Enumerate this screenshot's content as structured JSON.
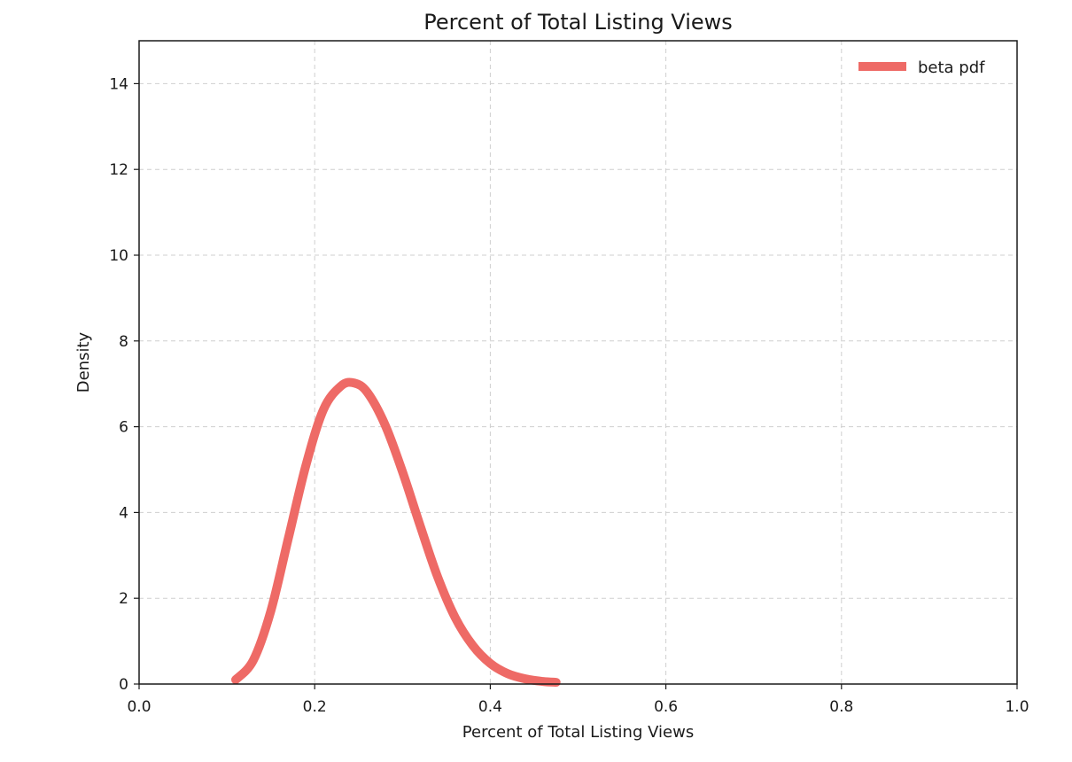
{
  "chart_data": {
    "type": "line",
    "title": "Percent of Total Listing Views",
    "xlabel": "Percent of Total Listing Views",
    "ylabel": "Density",
    "xlim": [
      0.0,
      1.0
    ],
    "ylim": [
      0,
      15
    ],
    "xticks": [
      0.0,
      0.2,
      0.4,
      0.6,
      0.8,
      1.0
    ],
    "xtick_labels": [
      "0.0",
      "0.2",
      "0.4",
      "0.6",
      "0.8",
      "1.0"
    ],
    "yticks": [
      0,
      2,
      4,
      6,
      8,
      10,
      12,
      14
    ],
    "ytick_labels": [
      "0",
      "2",
      "4",
      "6",
      "8",
      "10",
      "12",
      "14"
    ],
    "grid": true,
    "legend_position": "top-right",
    "series": [
      {
        "name": "beta pdf",
        "color": "#ee6a66",
        "x": [
          0.11,
          0.13,
          0.15,
          0.17,
          0.19,
          0.21,
          0.23,
          0.245,
          0.26,
          0.28,
          0.3,
          0.32,
          0.34,
          0.36,
          0.38,
          0.4,
          0.42,
          0.44,
          0.46,
          0.475
        ],
        "y": [
          0.1,
          0.55,
          1.7,
          3.4,
          5.1,
          6.4,
          6.95,
          7.02,
          6.8,
          6.05,
          4.95,
          3.7,
          2.5,
          1.55,
          0.9,
          0.48,
          0.24,
          0.12,
          0.06,
          0.04
        ]
      }
    ]
  }
}
